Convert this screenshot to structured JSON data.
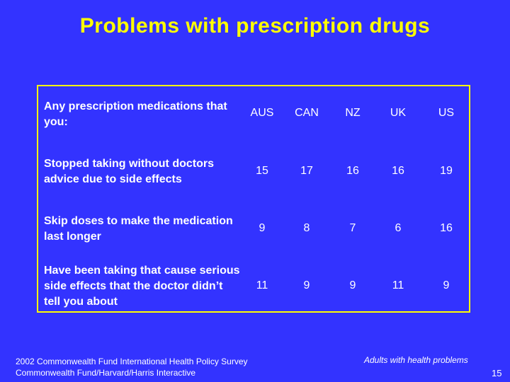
{
  "title": "Problems with prescription drugs",
  "table": {
    "header_label": "Any prescription medications that you:",
    "columns": [
      "AUS",
      "CAN",
      "NZ",
      "UK",
      "US"
    ],
    "rows": [
      {
        "label": "Stopped taking without doctors advice due to side effects",
        "values": [
          "15",
          "17",
          "16",
          "16",
          "19"
        ]
      },
      {
        "label": "Skip doses to make the medication last longer",
        "values": [
          "9",
          "8",
          "7",
          "6",
          "16"
        ]
      },
      {
        "label": "Have been taking that cause serious side effects that the doctor didn’t tell you about",
        "values": [
          "11",
          "9",
          "9",
          "11",
          "9"
        ]
      }
    ]
  },
  "footer": {
    "source_line1": "2002 Commonwealth Fund International Health Policy Survey",
    "source_line2": "Commonwealth Fund/Harvard/Harris Interactive",
    "note": "Adults with health problems",
    "page_number": "15"
  },
  "colors": {
    "background": "#3333ff",
    "title": "#ffff00",
    "border": "#ffff00",
    "text": "#ffffff"
  }
}
